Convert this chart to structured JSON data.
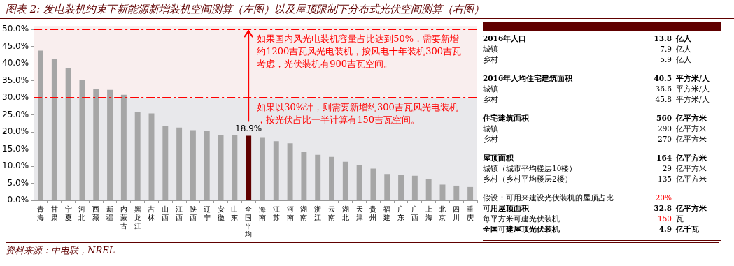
{
  "chart_data": [
    {
      "type": "bar",
      "title": "图表 2: 发电装机约束下新能源新增装机空间测算（左图）以及屋顶限制下分布式光伏空间测算（右图）",
      "categories": [
        "青海",
        "甘肃",
        "宁夏",
        "河北",
        "西藏",
        "新疆",
        "内蒙古",
        "黑龙江",
        "吉林",
        "山西",
        "江西",
        "陕西",
        "辽宁",
        "安徽",
        "山东",
        "全国平均",
        "海南",
        "江苏",
        "河南",
        "湖南",
        "浙江",
        "云南",
        "湖北",
        "天津",
        "贵州",
        "福建",
        "广东",
        "广西",
        "上海",
        "北京",
        "四川",
        "重庆"
      ],
      "values": [
        43.8,
        41.4,
        38.7,
        35.2,
        32.5,
        32.3,
        30.9,
        25.9,
        25.4,
        21.7,
        21.3,
        20.5,
        20.4,
        19.1,
        19.1,
        18.9,
        18.5,
        17.3,
        16.7,
        14.1,
        13.3,
        12.7,
        11.3,
        10.4,
        9.3,
        7.7,
        7.4,
        7.2,
        6.3,
        4.6,
        4.3,
        3.9
      ],
      "colors": [
        "#a6a6a6",
        "#a6a6a6",
        "#a6a6a6",
        "#a6a6a6",
        "#a6a6a6",
        "#a6a6a6",
        "#a6a6a6",
        "#a6a6a6",
        "#a6a6a6",
        "#a6a6a6",
        "#a6a6a6",
        "#a6a6a6",
        "#a6a6a6",
        "#a6a6a6",
        "#a6a6a6",
        "#600000",
        "#a6a6a6",
        "#a6a6a6",
        "#a6a6a6",
        "#a6a6a6",
        "#a6a6a6",
        "#a6a6a6",
        "#a6a6a6",
        "#a6a6a6",
        "#a6a6a6",
        "#a6a6a6",
        "#a6a6a6",
        "#a6a6a6",
        "#a6a6a6",
        "#a6a6a6",
        "#a6a6a6",
        "#a6a6a6"
      ],
      "value_labels": [
        null,
        null,
        null,
        null,
        null,
        null,
        null,
        null,
        null,
        null,
        null,
        null,
        null,
        null,
        null,
        "18.9%",
        null,
        null,
        null,
        null,
        null,
        null,
        null,
        null,
        null,
        null,
        null,
        null,
        null,
        null,
        null,
        null
      ],
      "ylim": [
        0,
        51
      ],
      "yticks": [
        {
          "value": 0,
          "label": "0.0%"
        },
        {
          "value": 5,
          "label": "5.0%"
        },
        {
          "value": 10,
          "label": "10.0%"
        },
        {
          "value": 15,
          "label": "15.0%"
        },
        {
          "value": 20,
          "label": "20.0%"
        },
        {
          "value": 25,
          "label": "25.0%"
        },
        {
          "value": 30,
          "label": "30.0%"
        },
        {
          "value": 35,
          "label": "35.0%"
        },
        {
          "value": 40,
          "label": "40.0%"
        },
        {
          "value": 45,
          "label": "45.0%"
        },
        {
          "value": 50,
          "label": "50.0%"
        }
      ],
      "bands": [
        {
          "axis": "y",
          "from": 30,
          "to": 51,
          "color": "#f9eeee"
        },
        {
          "axis": "y",
          "from": 0,
          "to": 30,
          "color": "#e8e8eb"
        }
      ],
      "ref_lines": [
        {
          "axis": "y",
          "value": 30,
          "color": "#ff0000",
          "line_style": "dashed"
        },
        {
          "axis": "y",
          "value": 50,
          "color": "#ff0000",
          "line_style": "dashed"
        }
      ],
      "grid": false,
      "legend": false,
      "annotations": [
        {
          "text": "如果国内风光电装机容量占比达到50%，需要新增约1200吉瓦风光电装机，按风电十年装机300吉瓦考虑，光伏装机有900吉瓦空间。",
          "x": "全国平均",
          "y": 50
        },
        {
          "text": "如果以30%计，则需要新增约300吉瓦风光电装机，按光伏占比一半计算有150吉瓦空间。",
          "x": "全国平均",
          "y": 30
        },
        "资料来源：中电联，NREL"
      ]
    },
    {
      "type": "other",
      "categories": [
        "2016年人口",
        "城镇",
        "乡村",
        "2016年人均住宅建筑面积",
        "城镇",
        "乡村",
        "住宅建筑面积",
        "城镇",
        "乡村",
        "屋顶面积",
        "城镇（城市平均楼层10楼）",
        "乡村（乡村平均楼层2楼）",
        "假设：可用来建设光伏装机的屋顶占比",
        "可用屋顶面积",
        "每平方米可建光伏装机",
        "全国可建屋顶光伏装机"
      ],
      "value_labels": [
        "13.8",
        "7.9",
        "5.9",
        "40.5",
        "36.6",
        "45.8",
        "560",
        "290",
        "270",
        "164",
        "29",
        "135",
        "20%",
        "32.8",
        "150",
        "4.9"
      ],
      "annotations": [
        "亿人",
        "亿人",
        "亿人",
        "平方米/人",
        "平方米/人",
        "平方米/人",
        "亿平方米",
        "亿平方米",
        "亿平方米",
        "亿平方米",
        "亿平方米",
        "亿平方米",
        null,
        "亿平方米",
        "瓦",
        "亿千瓦"
      ],
      "colors": [
        "#000000",
        "#000000",
        "#000000",
        "#000000",
        "#000000",
        "#000000",
        "#000000",
        "#000000",
        "#000000",
        "#000000",
        "#000000",
        "#000000",
        "#ff0000",
        "#000000",
        "#ff0000",
        "#000000"
      ]
    }
  ]
}
